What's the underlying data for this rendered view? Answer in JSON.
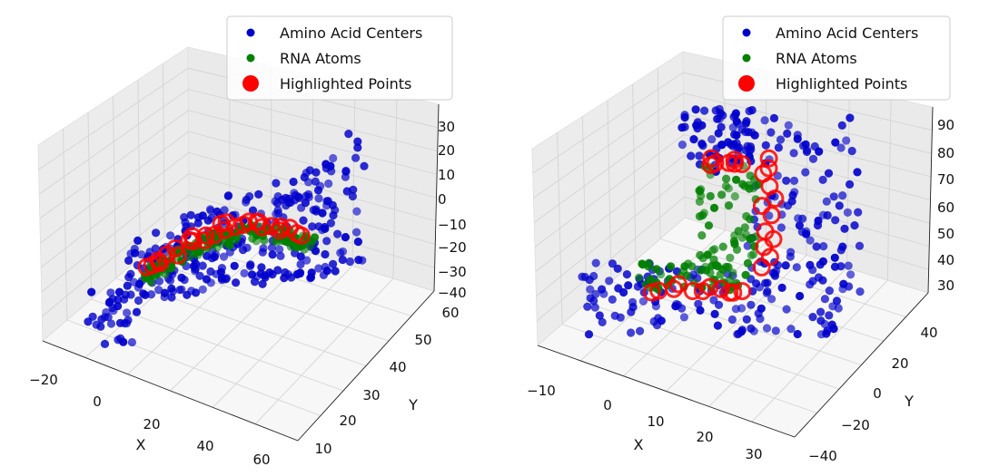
{
  "chart_data": [
    {
      "type": "scatter3d",
      "xlabel": "X",
      "ylabel": "Y",
      "zlabel": "",
      "xlim": [
        -20,
        60
      ],
      "ylim": [
        10,
        60
      ],
      "zlim": [
        -40,
        35
      ],
      "xticks": [
        "−20",
        "0",
        "20",
        "40",
        "60"
      ],
      "yticks": [
        "10",
        "20",
        "30",
        "40",
        "50",
        "60"
      ],
      "zticks": [
        "−40",
        "−30",
        "−20",
        "−10",
        "0",
        "10",
        "20",
        "30"
      ],
      "grid": true,
      "legend_position": "top-right",
      "series": [
        {
          "name": "Amino Acid Centers",
          "color": "#0000cc",
          "marker": "dot",
          "count": 320
        },
        {
          "name": "RNA Atoms",
          "color": "#008000",
          "marker": "dot",
          "count": 160
        },
        {
          "name": "Highlighted Points",
          "color": "#ff0000",
          "marker": "ring",
          "count": 28
        }
      ]
    },
    {
      "type": "scatter3d",
      "xlabel": "X",
      "ylabel": "Y",
      "zlabel": "",
      "xlim": [
        -15,
        35
      ],
      "ylim": [
        -40,
        50
      ],
      "zlim": [
        25,
        95
      ],
      "xticks": [
        "−10",
        "0",
        "10",
        "20",
        "30"
      ],
      "yticks": [
        "−40",
        "−20",
        "0",
        "20",
        "40"
      ],
      "zticks": [
        "30",
        "40",
        "50",
        "60",
        "70",
        "80",
        "90"
      ],
      "grid": true,
      "legend_position": "top-right",
      "series": [
        {
          "name": "Amino Acid Centers",
          "color": "#0000cc",
          "marker": "dot",
          "count": 300
        },
        {
          "name": "RNA Atoms",
          "color": "#008000",
          "marker": "dot",
          "count": 110
        },
        {
          "name": "Highlighted Points",
          "color": "#ff0000",
          "marker": "ring",
          "count": 30
        }
      ]
    }
  ]
}
